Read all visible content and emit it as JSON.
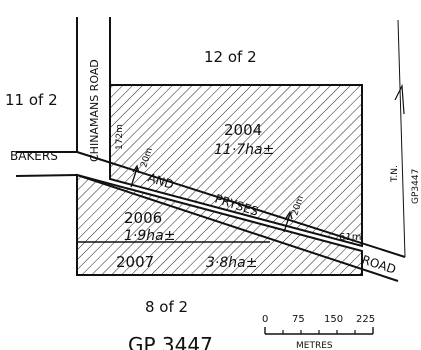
{
  "plan": {
    "title": "GP 3447",
    "side_reference": "GP3447",
    "north_label": "T.N."
  },
  "parcels": {
    "north": "12 of 2",
    "west": "11 of 2",
    "south": "8 of 2",
    "lot_2004": {
      "number": "2004",
      "area": "11·7ha±"
    },
    "lot_2006": {
      "number": "2006",
      "area": "1·9ha±"
    },
    "lot_2007": {
      "number": "2007",
      "area": "3·8ha±"
    }
  },
  "roads": {
    "chinamans": "CHINAMANS  ROAD",
    "bakers": "BAKERS",
    "and": "AND",
    "pryses": "PRYSES",
    "road": "ROAD"
  },
  "dimensions": {
    "west_edge": "172m",
    "road_width_west": "20m",
    "road_width_east": "20m",
    "east_edge": "61m"
  },
  "scale_bar": {
    "ticks": [
      "0",
      "75",
      "150",
      "225"
    ],
    "unit": "METRES"
  }
}
